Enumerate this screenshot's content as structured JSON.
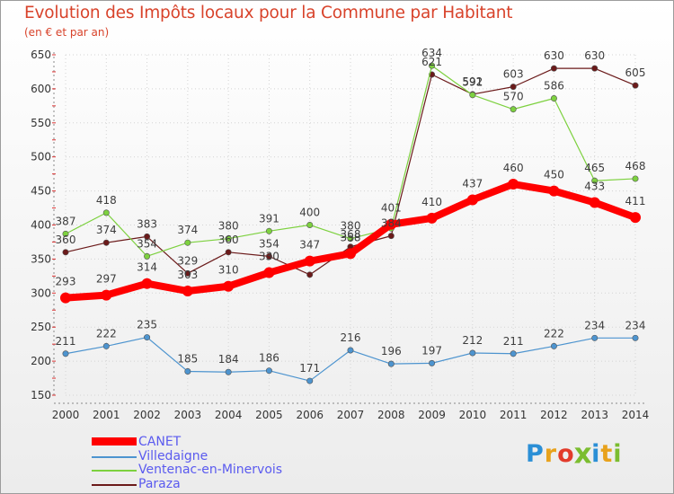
{
  "title": "Evolution des Impôts locaux pour la Commune par Habitant",
  "subtitle": "(en € et par an)",
  "logo": {
    "text": "Proxiti",
    "letter_colors": [
      "#2b8fd6",
      "#e8a21c",
      "#e23b2b",
      "#7bbd2f",
      "#2b8fd6",
      "#e8a21c",
      "#7bbd2f"
    ]
  },
  "chart_data": {
    "type": "line",
    "title": "Evolution des Impôts locaux pour la Commune par Habitant",
    "subtitle": "(en € et par an)",
    "x": [
      2000,
      2001,
      2002,
      2003,
      2004,
      2005,
      2006,
      2007,
      2008,
      2009,
      2010,
      2011,
      2012,
      2013,
      2014
    ],
    "ylim": [
      150,
      650
    ],
    "yticks": [
      150,
      200,
      250,
      300,
      350,
      400,
      450,
      500,
      550,
      600,
      650
    ],
    "grid": true,
    "legend_position": "bottom-left",
    "series": [
      {
        "name": "Paraza",
        "color": "#6b1a1a",
        "values": [
          360,
          374,
          383,
          329,
          360,
          354,
          327,
          368,
          384,
          621,
          592,
          603,
          630,
          630,
          605
        ],
        "labels": [
          "360",
          "374",
          "383",
          "329",
          "360",
          "354",
          "",
          "368",
          "384",
          "621",
          "592",
          "603",
          "630",
          "630",
          "605"
        ]
      },
      {
        "name": "Ventenac-en-Minervois",
        "color": "#7dd13f",
        "values": [
          387,
          418,
          354,
          374,
          380,
          391,
          400,
          380,
          395,
          634,
          591,
          570,
          586,
          465,
          468
        ],
        "labels": [
          "387",
          "418",
          "354",
          "374",
          "380",
          "391",
          "400",
          "380",
          "",
          "634",
          "591",
          "570",
          "586",
          "465",
          "468"
        ]
      },
      {
        "name": "Villedaigne",
        "color": "#4d94cf",
        "values": [
          211,
          222,
          235,
          185,
          184,
          186,
          171,
          216,
          196,
          197,
          212,
          211,
          222,
          234,
          234
        ],
        "labels": [
          "211",
          "222",
          "235",
          "185",
          "184",
          "186",
          "171",
          "216",
          "196",
          "197",
          "212",
          "211",
          "222",
          "234",
          "234"
        ]
      },
      {
        "name": "CANET",
        "color": "#ff0000",
        "values": [
          293,
          297,
          314,
          303,
          310,
          330,
          347,
          358,
          401,
          410,
          437,
          460,
          450,
          433,
          411
        ],
        "labels": [
          "293",
          "297",
          "314",
          "303",
          "310",
          "330",
          "347",
          "358",
          "401",
          "410",
          "437",
          "460",
          "450",
          "433",
          "411"
        ]
      }
    ],
    "legend": [
      "CANET",
      "Villedaigne",
      "Ventenac-en-Minervois",
      "Paraza"
    ]
  }
}
